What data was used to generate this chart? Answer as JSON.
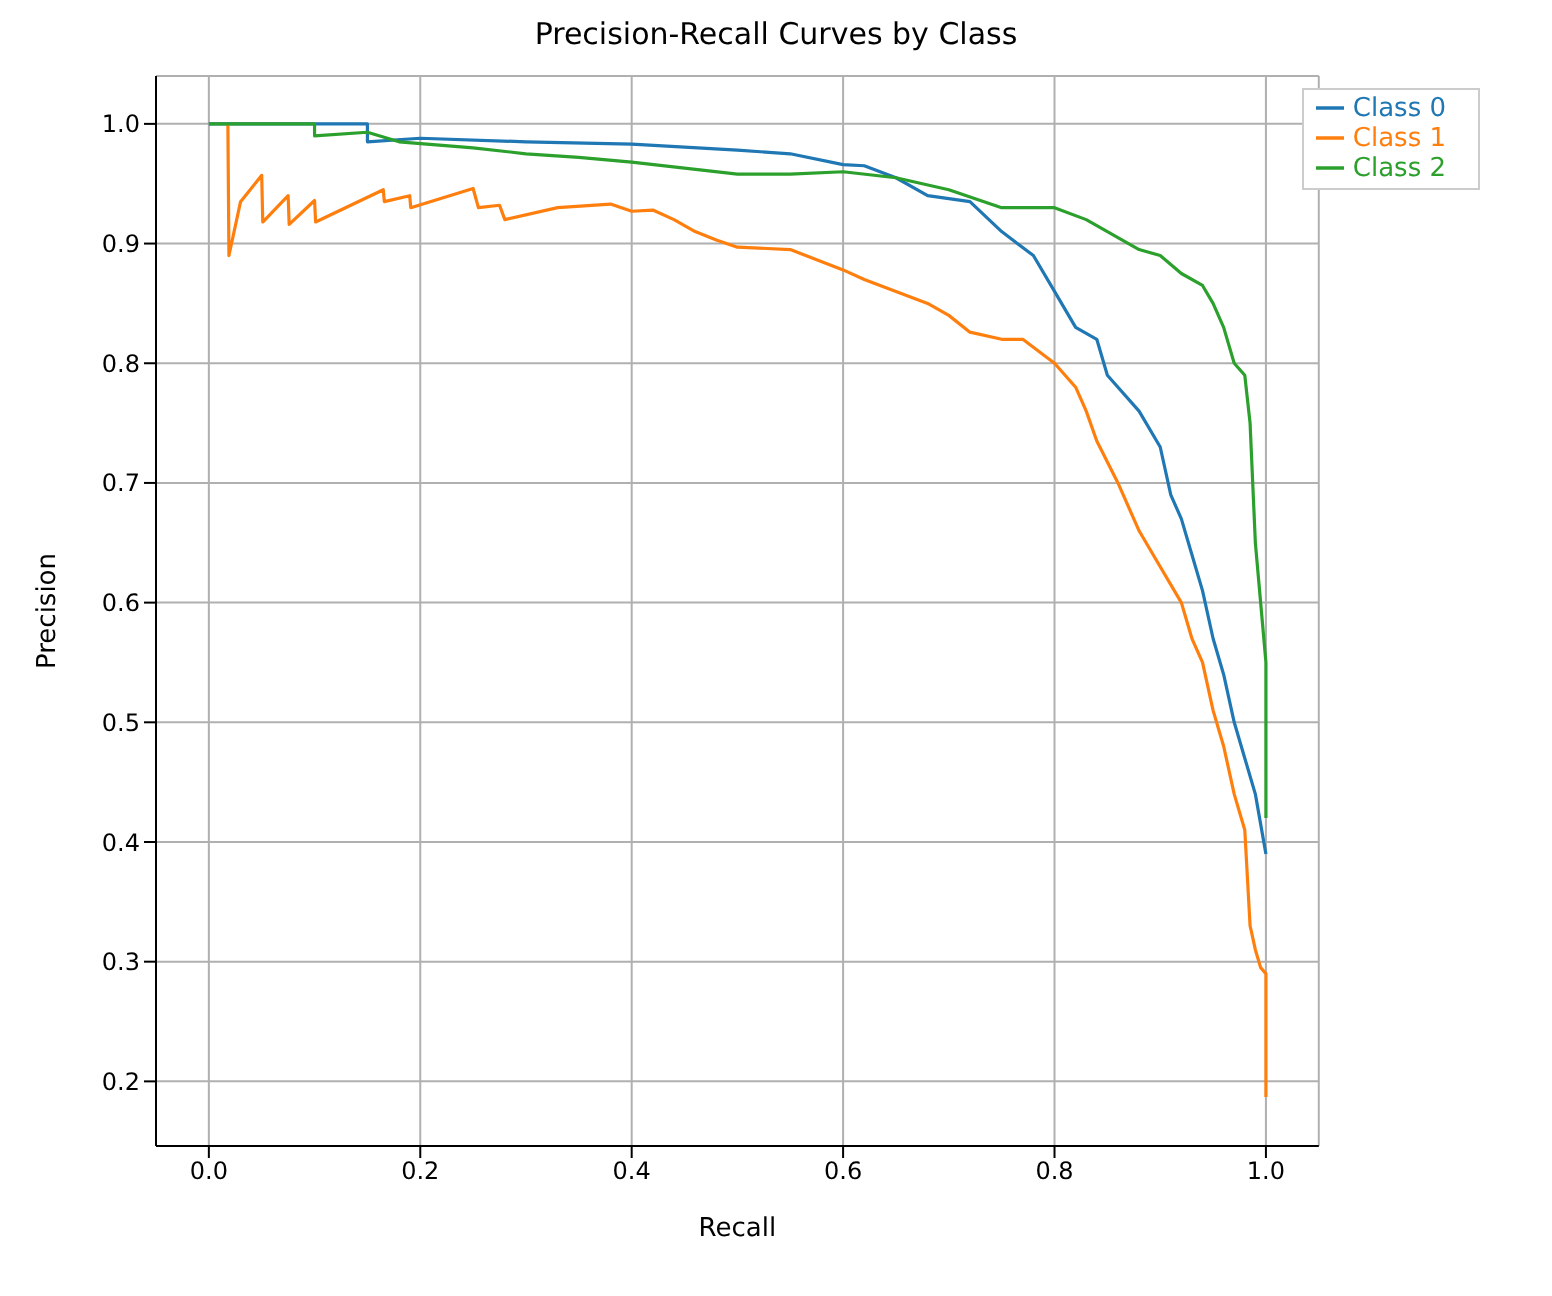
{
  "chart_data": {
    "type": "line",
    "title": "Precision-Recall Curves by Class",
    "xlabel": "Recall",
    "ylabel": "Precision",
    "xlim": [
      -0.05,
      1.05
    ],
    "ylim": [
      0.146,
      1.04
    ],
    "xticks": [
      {
        "value": 0,
        "label": "0.0"
      },
      0.2,
      0.4,
      0.6,
      0.8,
      {
        "value": 1,
        "label": "1.0"
      }
    ],
    "yticks": [
      0.2,
      0.3,
      0.4,
      0.5,
      0.6,
      0.7,
      0.8,
      0.9,
      {
        "value": 1,
        "label": "1.0"
      }
    ],
    "grid": true,
    "legend": "top right",
    "marker": "none",
    "line_style": "solid",
    "series": [
      {
        "name": "Class 0",
        "color": "#1f77b4",
        "x": [
          0,
          0.15,
          0.15,
          0.2,
          0.3,
          0.4,
          0.5,
          0.55,
          0.6,
          0.62,
          0.65,
          0.68,
          0.72,
          0.75,
          0.78,
          0.8,
          0.82,
          0.84,
          0.85,
          0.88,
          0.9,
          0.91,
          0.92,
          0.93,
          0.94,
          0.95,
          0.96,
          0.97,
          0.98,
          0.99,
          1.0
        ],
        "values": [
          1.0,
          1.0,
          0.985,
          0.988,
          0.985,
          0.983,
          0.978,
          0.975,
          0.966,
          0.965,
          0.955,
          0.94,
          0.935,
          0.91,
          0.89,
          0.86,
          0.83,
          0.82,
          0.79,
          0.76,
          0.73,
          0.69,
          0.67,
          0.64,
          0.61,
          0.57,
          0.54,
          0.5,
          0.47,
          0.44,
          0.39
        ]
      },
      {
        "name": "Class 1",
        "color": "#ff7f0e",
        "x": [
          0.018,
          0.019,
          0.03,
          0.05,
          0.051,
          0.075,
          0.076,
          0.1,
          0.101,
          0.165,
          0.166,
          0.19,
          0.191,
          0.25,
          0.255,
          0.275,
          0.28,
          0.33,
          0.38,
          0.4,
          0.42,
          0.44,
          0.46,
          0.48,
          0.5,
          0.55,
          0.6,
          0.62,
          0.65,
          0.68,
          0.7,
          0.72,
          0.75,
          0.77,
          0.8,
          0.82,
          0.83,
          0.84,
          0.86,
          0.88,
          0.9,
          0.92,
          0.93,
          0.94,
          0.95,
          0.96,
          0.97,
          0.98,
          0.985,
          0.99,
          0.995,
          1.0,
          1.0
        ],
        "values": [
          1.0,
          0.89,
          0.935,
          0.957,
          0.918,
          0.94,
          0.916,
          0.936,
          0.918,
          0.945,
          0.935,
          0.94,
          0.93,
          0.946,
          0.93,
          0.932,
          0.92,
          0.93,
          0.933,
          0.927,
          0.928,
          0.92,
          0.91,
          0.903,
          0.897,
          0.895,
          0.878,
          0.87,
          0.86,
          0.85,
          0.84,
          0.826,
          0.82,
          0.82,
          0.8,
          0.78,
          0.76,
          0.735,
          0.7,
          0.66,
          0.63,
          0.6,
          0.57,
          0.55,
          0.51,
          0.48,
          0.44,
          0.41,
          0.33,
          0.31,
          0.295,
          0.29,
          0.187
        ]
      },
      {
        "name": "Class 2",
        "color": "#2ca02c",
        "x": [
          0,
          0.1,
          0.1,
          0.15,
          0.18,
          0.25,
          0.3,
          0.35,
          0.4,
          0.45,
          0.5,
          0.55,
          0.6,
          0.65,
          0.7,
          0.75,
          0.8,
          0.83,
          0.85,
          0.88,
          0.9,
          0.92,
          0.94,
          0.95,
          0.96,
          0.97,
          0.98,
          0.985,
          0.99,
          0.995,
          1.0,
          1.0
        ],
        "values": [
          1.0,
          1.0,
          0.99,
          0.993,
          0.985,
          0.98,
          0.975,
          0.972,
          0.968,
          0.963,
          0.958,
          0.958,
          0.96,
          0.955,
          0.945,
          0.93,
          0.93,
          0.92,
          0.91,
          0.895,
          0.89,
          0.875,
          0.865,
          0.85,
          0.83,
          0.8,
          0.79,
          0.75,
          0.65,
          0.6,
          0.55,
          0.42
        ]
      }
    ]
  }
}
